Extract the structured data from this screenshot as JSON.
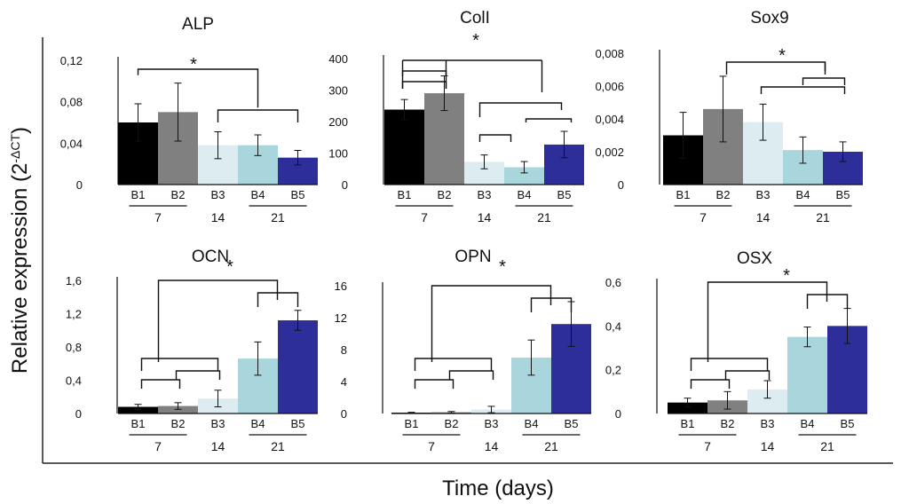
{
  "figure": {
    "ylabel_main": "Relative expression (2",
    "ylabel_sup": "-ΔCT",
    "ylabel_close": ")",
    "xlabel": "Time (days)"
  },
  "colors": {
    "B1": "#000000",
    "B2": "#808080",
    "B3": "#dcecf0",
    "B4": "#a9d6dc",
    "B5": "#2e2e9a",
    "error": "#555555",
    "axis": "#222222"
  },
  "chart_data": [
    {
      "type": "bar",
      "title": "ALP",
      "categories": [
        "B1",
        "B2",
        "B3",
        "B4",
        "B5"
      ],
      "groups": [
        {
          "label": "7",
          "members": [
            "B1",
            "B2"
          ]
        },
        {
          "label": "14",
          "members": [
            "B3"
          ]
        },
        {
          "label": "21",
          "members": [
            "B4",
            "B5"
          ]
        }
      ],
      "values": [
        0.06,
        0.07,
        0.038,
        0.038,
        0.026
      ],
      "errors": [
        0.018,
        0.028,
        0.013,
        0.01,
        0.007
      ],
      "ylim": [
        0,
        0.12
      ],
      "yticks": [
        0,
        0.04,
        0.08,
        0.12
      ],
      "ytick_labels": [
        "0",
        "0,04",
        "0,08",
        "0,12"
      ],
      "significance": "*"
    },
    {
      "type": "bar",
      "title": "ColI",
      "categories": [
        "B1",
        "B2",
        "B3",
        "B4",
        "B5"
      ],
      "groups": [
        {
          "label": "7",
          "members": [
            "B1",
            "B2"
          ]
        },
        {
          "label": "14",
          "members": [
            "B3"
          ]
        },
        {
          "label": "21",
          "members": [
            "B4",
            "B5"
          ]
        }
      ],
      "values": [
        238,
        290,
        72,
        55,
        127
      ],
      "errors": [
        32,
        55,
        22,
        18,
        42
      ],
      "ylim": [
        0,
        400
      ],
      "yticks": [
        0,
        100,
        200,
        300,
        400
      ],
      "ytick_labels": [
        "0",
        "100",
        "200",
        "300",
        "400"
      ],
      "significance": "*"
    },
    {
      "type": "bar",
      "title": "Sox9",
      "categories": [
        "B1",
        "B2",
        "B3",
        "B4",
        "B5"
      ],
      "groups": [
        {
          "label": "7",
          "members": [
            "B1",
            "B2"
          ]
        },
        {
          "label": "14",
          "members": [
            "B3"
          ]
        },
        {
          "label": "21",
          "members": [
            "B4",
            "B5"
          ]
        }
      ],
      "values": [
        0.003,
        0.0046,
        0.0038,
        0.0021,
        0.002
      ],
      "errors": [
        0.0014,
        0.002,
        0.0011,
        0.0008,
        0.0006
      ],
      "ylim": [
        0,
        0.008
      ],
      "yticks": [
        0,
        0.002,
        0.004,
        0.006,
        0.008
      ],
      "ytick_labels": [
        "0",
        "0,002",
        "0,004",
        "0,006",
        "0,008"
      ],
      "significance": "*"
    },
    {
      "type": "bar",
      "title": "OCN",
      "categories": [
        "B1",
        "B2",
        "B3",
        "B4",
        "B5"
      ],
      "groups": [
        {
          "label": "7",
          "members": [
            "B1",
            "B2"
          ]
        },
        {
          "label": "14",
          "members": [
            "B3"
          ]
        },
        {
          "label": "21",
          "members": [
            "B4",
            "B5"
          ]
        }
      ],
      "values": [
        0.08,
        0.09,
        0.18,
        0.66,
        1.12
      ],
      "errors": [
        0.03,
        0.04,
        0.1,
        0.2,
        0.12
      ],
      "ylim": [
        0,
        1.6
      ],
      "yticks": [
        0,
        0.4,
        0.8,
        1.2,
        1.6
      ],
      "ytick_labels": [
        "0",
        "0,4",
        "0,8",
        "1,2",
        "1,6"
      ],
      "significance": "*"
    },
    {
      "type": "bar",
      "title": "OPN",
      "categories": [
        "B1",
        "B2",
        "B3",
        "B4",
        "B5"
      ],
      "groups": [
        {
          "label": "7",
          "members": [
            "B1",
            "B2"
          ]
        },
        {
          "label": "14",
          "members": [
            "B3"
          ]
        },
        {
          "label": "21",
          "members": [
            "B4",
            "B5"
          ]
        }
      ],
      "values": [
        0.1,
        0.15,
        0.5,
        7.0,
        11.2
      ],
      "errors": [
        0.05,
        0.1,
        0.4,
        2.2,
        2.8
      ],
      "ylim": [
        0,
        16
      ],
      "yticks": [
        0,
        4,
        8,
        12,
        16
      ],
      "ytick_labels": [
        "0",
        "4",
        "8",
        "12",
        "16"
      ],
      "significance": "*"
    },
    {
      "type": "bar",
      "title": "OSX",
      "categories": [
        "B1",
        "B2",
        "B3",
        "B4",
        "B5"
      ],
      "groups": [
        {
          "label": "7",
          "members": [
            "B1",
            "B2"
          ]
        },
        {
          "label": "14",
          "members": [
            "B3"
          ]
        },
        {
          "label": "21",
          "members": [
            "B4",
            "B5"
          ]
        }
      ],
      "values": [
        0.05,
        0.06,
        0.11,
        0.35,
        0.4
      ],
      "errors": [
        0.02,
        0.04,
        0.04,
        0.045,
        0.08
      ],
      "ylim": [
        0,
        0.6
      ],
      "yticks": [
        0,
        0.2,
        0.4,
        0.6
      ],
      "ytick_labels": [
        "0",
        "0,2",
        "0,4",
        "0,6"
      ],
      "significance": "*"
    }
  ]
}
